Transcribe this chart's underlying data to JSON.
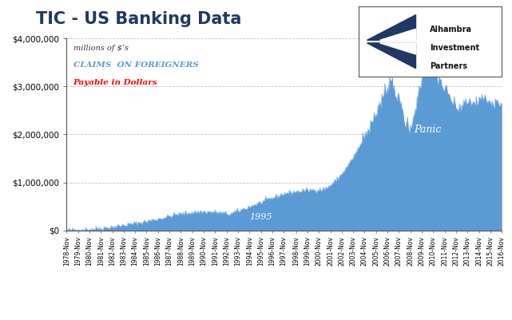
{
  "title": "TIC - US Banking Data",
  "subtitle_line1": "millions of $’s",
  "subtitle_line2": "CLAIMS  ON FOREIGNERS",
  "subtitle_line3": "Payable in Dollars",
  "fill_color": "#5B9BD5",
  "fill_alpha": 1.0,
  "background_color": "#FFFFFF",
  "grid_color": "#AAAAAA",
  "ylim": [
    0,
    4000000
  ],
  "yticks": [
    0,
    1000000,
    2000000,
    3000000,
    4000000
  ],
  "ytick_labels": [
    "$0",
    "$1,000,000",
    "$2,000,000",
    "$3,000,000",
    "$4,000,000"
  ],
  "title_color": "#1F3864",
  "title_fontsize": 15,
  "annotation_1995_color": "#FFFFFF",
  "annotation_panic_color": "#FFFFFF",
  "annotation_bs_color": "#333333",
  "annotation_may_color": "#333333"
}
